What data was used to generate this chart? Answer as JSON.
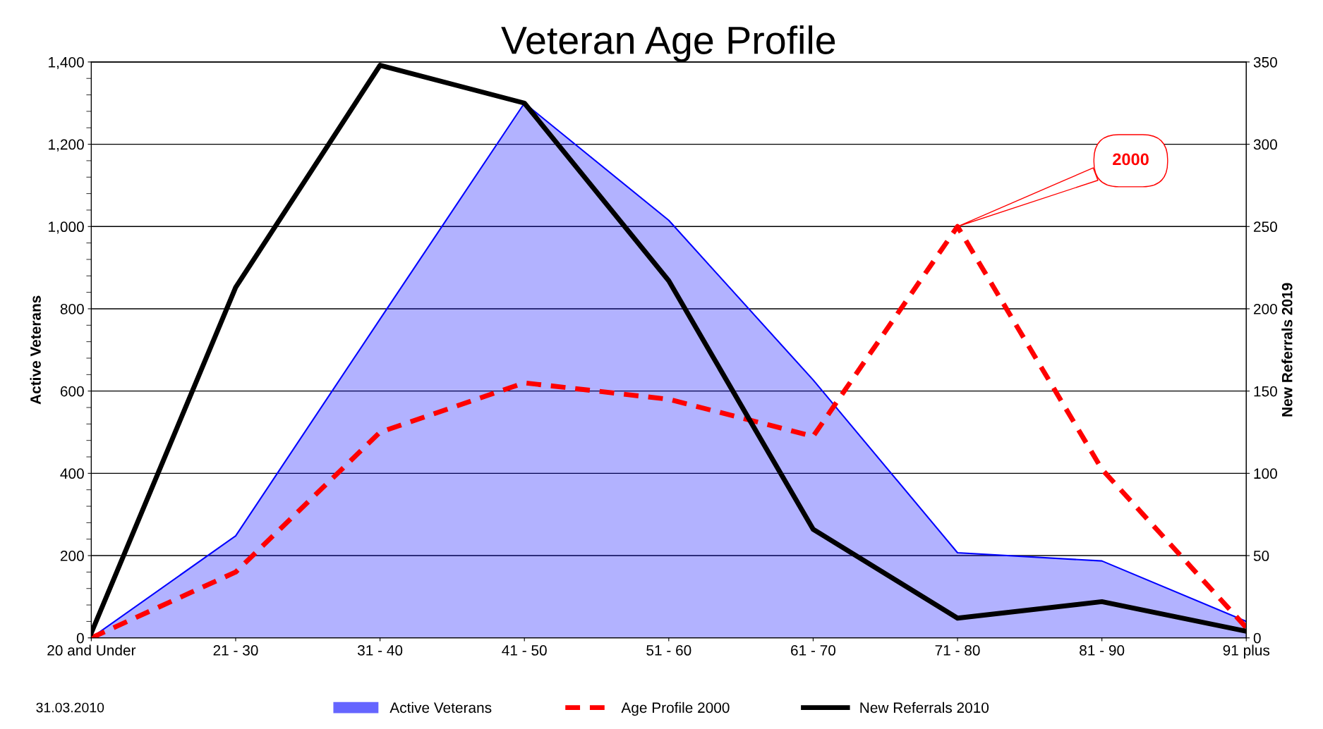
{
  "chart_data": {
    "type": "area",
    "title": "Veteran Age Profile",
    "categories": [
      "20 and Under",
      "21 - 30",
      "31 - 40",
      "41 - 50",
      "51 - 60",
      "61 - 70",
      "71 - 80",
      "81 - 90",
      "91 plus"
    ],
    "series": [
      {
        "name": "Active Veterans",
        "color": "#0000ff",
        "values": [
          0,
          248,
          775,
          1300,
          1015,
          627,
          207,
          187,
          40
        ]
      },
      {
        "name": "Age Profile 2000",
        "type": "line",
        "line_style": "dashed",
        "color": "#ff0000",
        "values": [
          0,
          160,
          500,
          620,
          580,
          490,
          1000,
          410,
          25
        ]
      },
      {
        "name": "New Referrals 2010",
        "type": "line",
        "line_style": "solid",
        "axis": "y2",
        "color": "#000000",
        "values": [
          3,
          213,
          348,
          325,
          217,
          66,
          12,
          22,
          4
        ]
      }
    ],
    "ylabel": "Active Veterans",
    "y2label": "New Referrals 2019",
    "ylim": [
      0,
      1400
    ],
    "yticks": [
      0,
      200,
      400,
      600,
      {
        "value": 800,
        "label": "800"
      },
      {
        "value": 1000,
        "label": "1,000"
      },
      {
        "value": 1200,
        "label": "1,200"
      },
      {
        "value": 1400,
        "label": "1,400"
      }
    ],
    "y2lim": [
      0,
      350
    ],
    "y2ticks": [
      0,
      50,
      100,
      150,
      200,
      250,
      300,
      350
    ],
    "grid": "y",
    "legend": "bottom",
    "annotations": [
      {
        "text": "2000",
        "x": "71 - 80",
        "y": 1000
      },
      "31.03.2010"
    ]
  }
}
